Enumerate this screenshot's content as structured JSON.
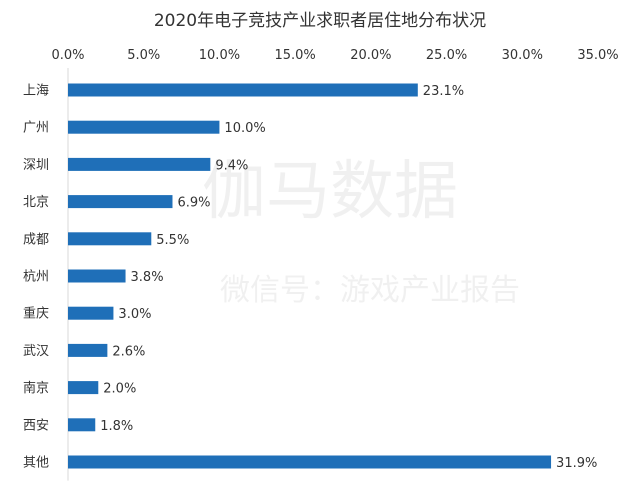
{
  "chart_data": {
    "type": "bar",
    "orientation": "horizontal",
    "title": "2020年电子竞技产业求职者居住地分布状况",
    "categories": [
      "上海",
      "广州",
      "深圳",
      "北京",
      "成都",
      "杭州",
      "重庆",
      "武汉",
      "南京",
      "西安",
      "其他"
    ],
    "values": [
      23.1,
      10.0,
      9.4,
      6.9,
      5.5,
      3.8,
      3.0,
      2.6,
      2.0,
      1.8,
      31.9
    ],
    "value_labels": [
      "23.1%",
      "10.0%",
      "9.4%",
      "6.9%",
      "5.5%",
      "3.8%",
      "3.0%",
      "2.6%",
      "2.0%",
      "1.8%",
      "31.9%"
    ],
    "x_ticks": [
      "0.0%",
      "5.0%",
      "10.0%",
      "15.0%",
      "20.0%",
      "25.0%",
      "30.0%",
      "35.0%"
    ],
    "xlim": [
      0,
      35
    ],
    "x_axis_position": "top",
    "grid": false,
    "legend": "none",
    "bar_color": "#1f6fb8",
    "axis_color": "#d9d9d9"
  },
  "watermark": {
    "main": "伽马数据",
    "sub": "微信号：游戏产业报告"
  }
}
